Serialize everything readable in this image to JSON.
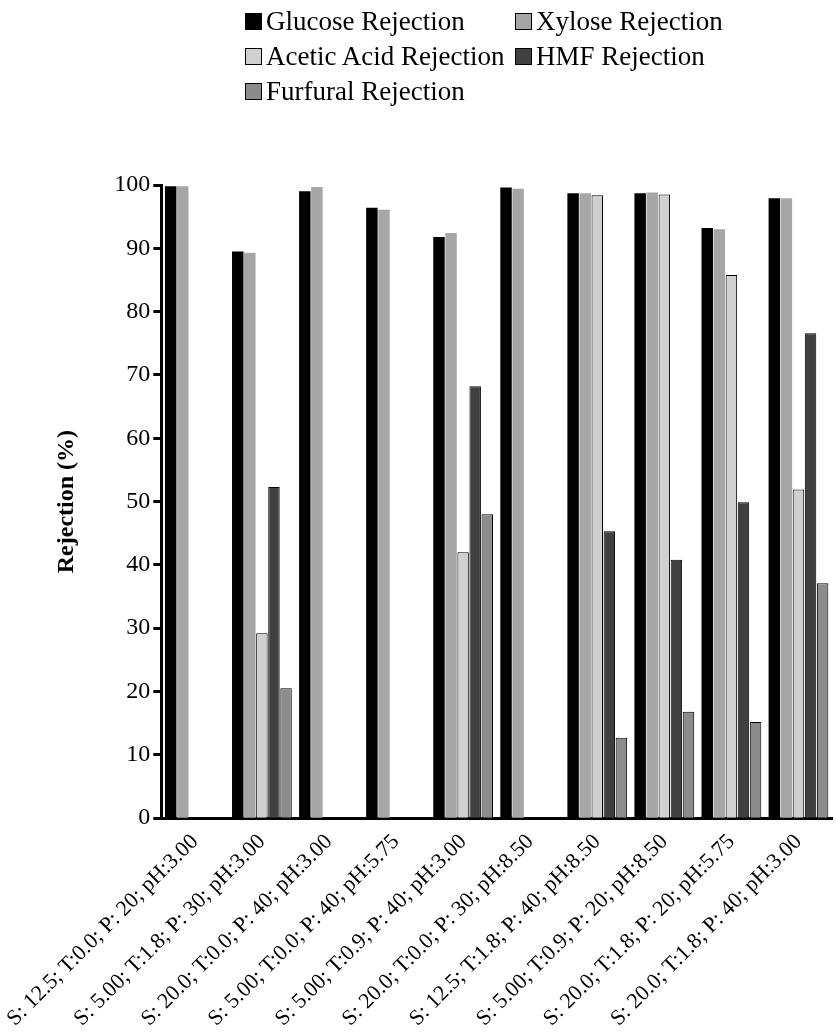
{
  "chart_data": {
    "type": "bar",
    "ylabel": "Rejection (%)",
    "categories": [
      "S: 12.5; T:0.0; P: 20; pH:3.00",
      "S: 5.00; T:1.8; P: 30; pH:3.00",
      "S: 20.0; T:0.0; P: 40; pH:3.00",
      "S: 5.00; T:0.0; P: 40; pH:5.75",
      "S: 5.00; T:0.9; P: 40; pH:3.00",
      "S: 20.0; T:0.0; P: 30; pH:8.50",
      "S: 12.5; T:1.8; P: 40; pH:8.50",
      "S: 5.00; T:0.9; P: 20; pH:8.50",
      "S: 20.0; T:1.8; P: 20; pH:5.75",
      "S: 20.0; T:1.8; P: 40; pH:3.00"
    ],
    "series": [
      {
        "name": "Glucose Rejection",
        "color": "#000000",
        "values": [
          99.8,
          89.5,
          99.0,
          96.4,
          91.8,
          99.6,
          98.7,
          98.7,
          93.2,
          97.9
        ]
      },
      {
        "name": "Xylose Rejection",
        "color": "#a6a6a6",
        "values": [
          99.8,
          89.3,
          99.7,
          96.1,
          92.4,
          99.4,
          98.7,
          98.8,
          93.0,
          97.9
        ]
      },
      {
        "name": "Acetic Acid Rejection",
        "color": "#d0d0d0",
        "values": [
          null,
          29.2,
          null,
          null,
          42.0,
          null,
          98.4,
          98.5,
          85.8,
          51.9
        ]
      },
      {
        "name": "HMF Rejection",
        "color": "#404040",
        "values": [
          null,
          52.3,
          null,
          null,
          68.2,
          null,
          45.3,
          40.8,
          49.9,
          76.6
        ]
      },
      {
        "name": "Furfural Rejection",
        "color": "#8c8c8c",
        "values": [
          null,
          20.5,
          null,
          null,
          48.0,
          null,
          12.7,
          16.8,
          15.2,
          37.1
        ]
      }
    ],
    "ylim": [
      0,
      100
    ],
    "yticks": [
      0,
      10,
      20,
      30,
      40,
      50,
      60,
      70,
      80,
      90,
      100
    ],
    "grid": false,
    "legend": "top"
  }
}
